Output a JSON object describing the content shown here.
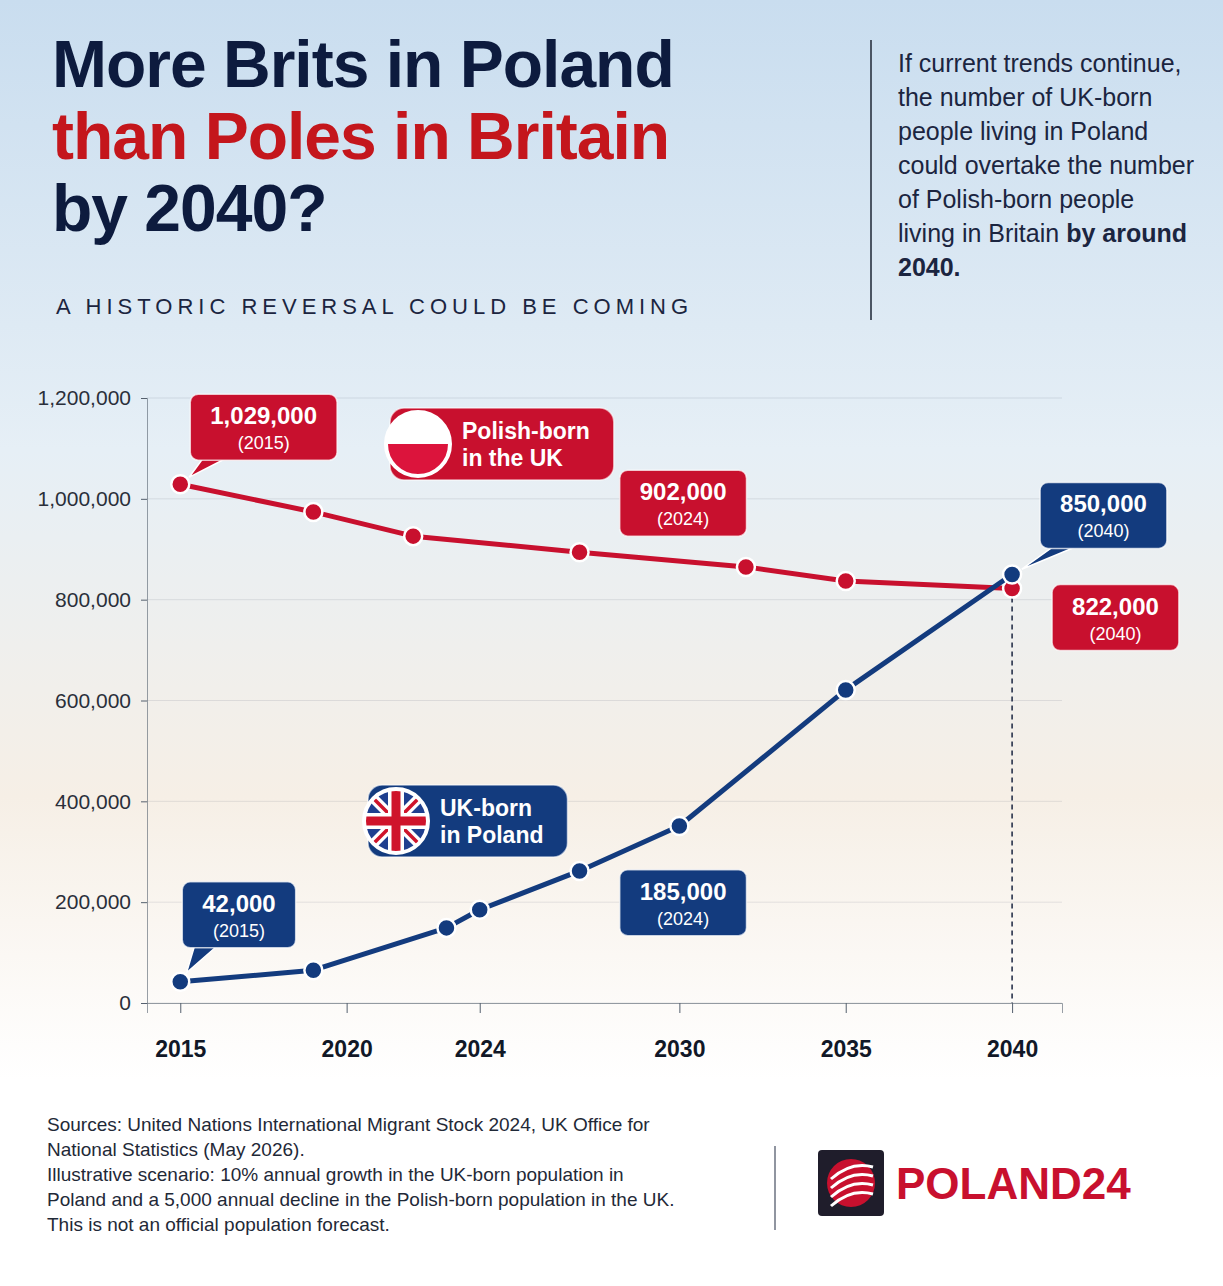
{
  "chart_data": {
    "type": "line",
    "title": [
      "More Brits in Poland",
      "than Poles in Britain",
      "by 2040?"
    ],
    "subtitle": "A HISTORIC REVERSAL COULD BE COMING",
    "side_note": "If current trends continue, the number of UK-born people living in Poland could overtake the number of Polish-born people living in Britain",
    "side_note_emphasis": "by around 2040.",
    "xlim": [
      2014,
      2041.5
    ],
    "xticks": [
      2015,
      2020,
      2024,
      2030,
      2035,
      2040
    ],
    "ylim": [
      0,
      1200000
    ],
    "yticks": [
      0,
      {
        "value": 200000,
        "label": "200,000"
      },
      {
        "value": 400000,
        "label": "400,000"
      },
      {
        "value": 600000,
        "label": "600,000"
      },
      {
        "value": 800000,
        "label": "800,000"
      },
      {
        "value": 1000000,
        "label": "1,000,000"
      },
      {
        "value": 1200000,
        "label": "1,200,000"
      }
    ],
    "grid": true,
    "marker": "circle",
    "series": [
      {
        "name": "Polish-born in the UK",
        "color": "#c8102e",
        "x": [
          2015,
          2019,
          2022,
          2027,
          2032,
          2035,
          2040
        ],
        "values": [
          1029000,
          974000,
          926000,
          894000,
          865000,
          837000,
          822000
        ]
      },
      {
        "name": "UK-born in Poland",
        "color": "#133b7e",
        "x": [
          2015,
          2019,
          2023,
          2024,
          2027,
          2030,
          2035,
          2040
        ],
        "values": [
          42000,
          65000,
          149000,
          185000,
          262000,
          351000,
          621000,
          850000
        ]
      }
    ],
    "annotations": [
      {
        "label": "1,029,000",
        "note": "(2015)",
        "x": 2015,
        "y": 1029000,
        "series": 0
      },
      {
        "label": "902,000",
        "note": "(2024)",
        "x": 2024,
        "y": 902000,
        "series": 0
      },
      {
        "label": "850,000",
        "note": "(2040)",
        "x": 2040,
        "y": 850000,
        "series": 1
      },
      {
        "label": "822,000",
        "note": "(2040)",
        "x": 2040,
        "y": 822000,
        "series": 0
      },
      {
        "label": "42,000",
        "note": "(2015)",
        "x": 2015,
        "y": 42000,
        "series": 1
      },
      {
        "label": "185,000",
        "note": "(2024)",
        "x": 2024,
        "y": 185000,
        "series": 1
      }
    ],
    "sources": "Sources: United Nations International Migrant Stock 2024, UK Office for National Statistics (May 2026).",
    "note": "Illustrative scenario: 10% annual growth in the UK-born population in Poland and a 5,000 annual decline in the Polish-born population in the UK. This is not an official population forecast.",
    "brand": "POLAND24"
  }
}
